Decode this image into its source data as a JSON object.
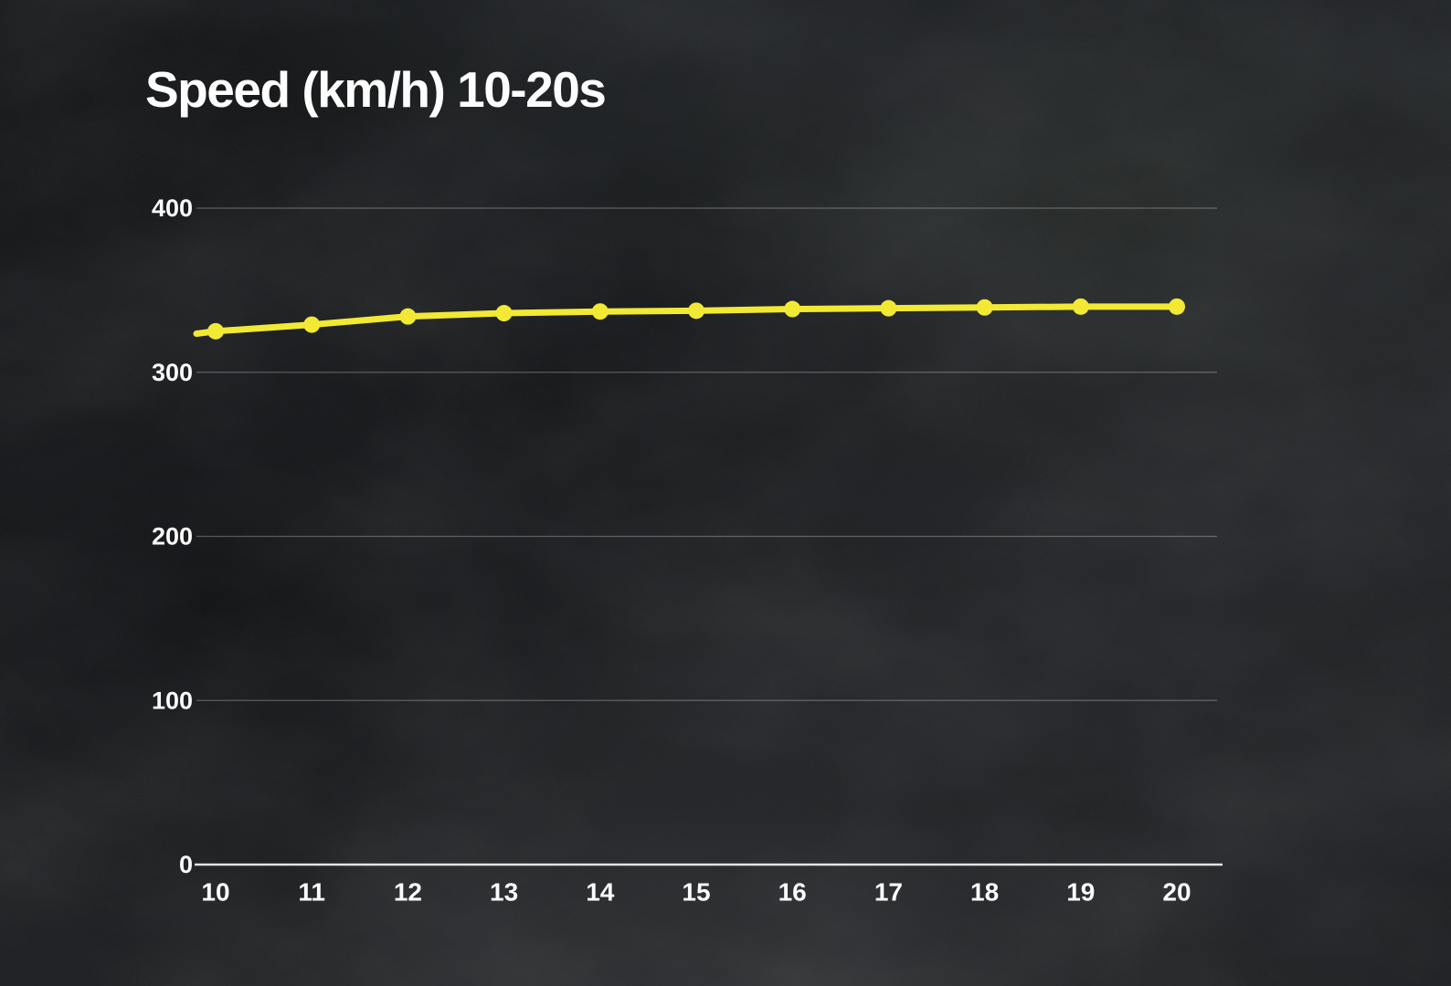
{
  "page": {
    "background_base_color": "#1f2123",
    "texture_style": "dark-grunge-concrete"
  },
  "chart_data": {
    "type": "line",
    "title": "Speed (km/h) 10-20s",
    "x": [
      10,
      11,
      12,
      13,
      14,
      15,
      16,
      17,
      18,
      19,
      20
    ],
    "x_tick_labels": [
      "10",
      "11",
      "12",
      "13",
      "14",
      "15",
      "16",
      "17",
      "18",
      "19",
      "20"
    ],
    "series": [
      {
        "name": "Speed (km/h)",
        "color": "#f2e935",
        "values": [
          325,
          329,
          334,
          336,
          337,
          337.5,
          338.5,
          339,
          339.5,
          340,
          340
        ]
      }
    ],
    "left_edge_entry_value": 323.5,
    "xlabel": "",
    "ylabel": "",
    "ylim": [
      0,
      400
    ],
    "yticks": [
      0,
      100,
      200,
      300,
      400
    ],
    "grid": "horizontal",
    "legend": "none",
    "markers": "filled-circle",
    "line_width": 7,
    "marker_radius": 9,
    "colors": {
      "grid": "rgba(255,255,255,0.28)",
      "axis": "rgba(238,238,238,0.95)",
      "tick_label": "#fbfbfb",
      "title": "#fdfdfd"
    }
  }
}
